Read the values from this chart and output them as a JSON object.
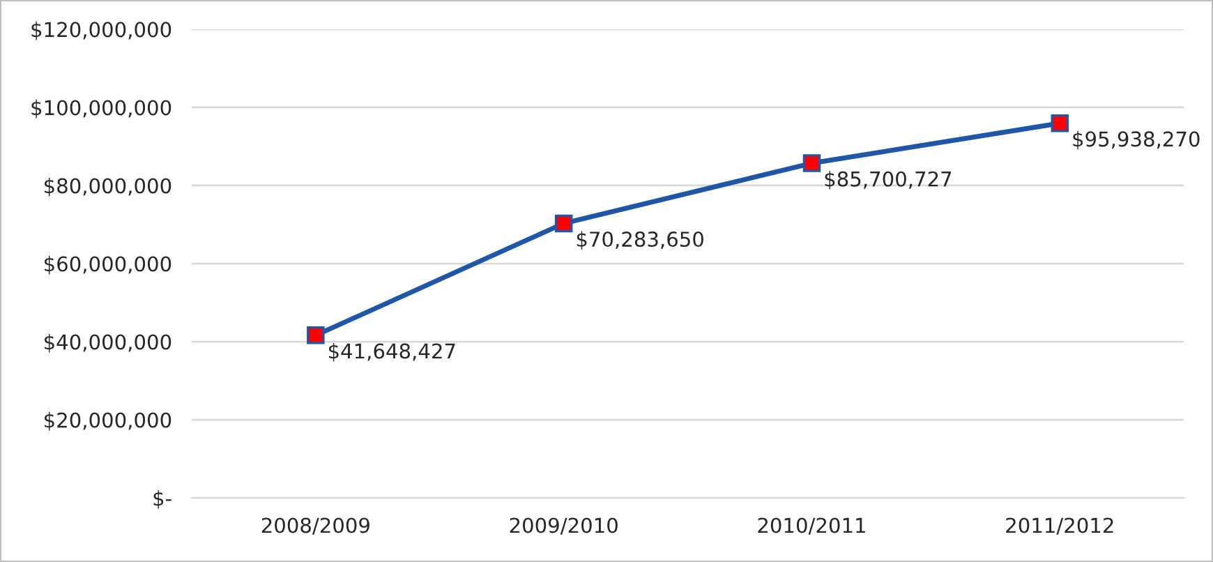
{
  "chart_data": {
    "type": "line",
    "categories": [
      "2008/2009",
      "2009/2010",
      "2010/2011",
      "2011/2012"
    ],
    "series": [
      {
        "color": "#1f56a8",
        "colors": [
          "#ff0000",
          "#ff0000",
          "#ff0000",
          "#ff0000"
        ],
        "values": [
          41648427,
          70283650,
          85700727,
          95938270
        ],
        "value_labels": [
          "$41,648,427",
          "$70,283,650",
          "$85,700,727",
          "$95,938,270"
        ]
      }
    ],
    "ylim": [
      0,
      120000000
    ],
    "yticks": [
      {
        "value": 0,
        "label": "$-"
      },
      {
        "value": 20000000,
        "label": "$20,000,000"
      },
      {
        "value": 40000000,
        "label": "$40,000,000"
      },
      {
        "value": 60000000,
        "label": "$60,000,000"
      },
      {
        "value": 80000000,
        "label": "$80,000,000"
      },
      {
        "value": 100000000,
        "label": "$100,000,000"
      },
      {
        "value": 120000000,
        "label": "$120,000,000"
      }
    ],
    "grid": "y",
    "marker": "square",
    "line_style": "solid",
    "legend": false
  }
}
